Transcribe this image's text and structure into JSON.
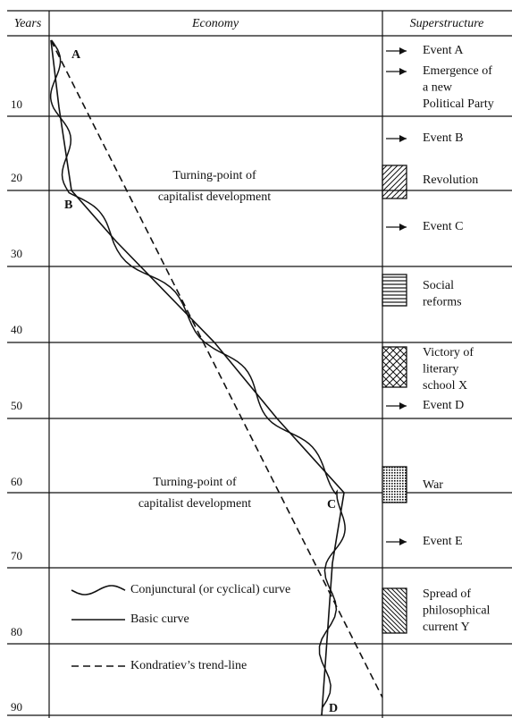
{
  "header": {
    "years": "Years",
    "economy": "Economy",
    "superstructure": "Superstructure"
  },
  "years": [
    "10",
    "20",
    "30",
    "40",
    "50",
    "60",
    "70",
    "80",
    "90"
  ],
  "points": [
    "A",
    "B",
    "C",
    "D"
  ],
  "annotations": [
    {
      "lines": [
        "Turning-point of",
        "capitalist development"
      ]
    },
    {
      "lines": [
        "Turning-point of",
        "capitalist development"
      ]
    }
  ],
  "superstructure": [
    {
      "lines": [
        "Event A"
      ]
    },
    {
      "lines": [
        "Emergence of",
        "a new",
        "Political Party"
      ]
    },
    {
      "lines": [
        "Event B"
      ]
    },
    {
      "lines": [
        "Revolution"
      ]
    },
    {
      "lines": [
        "Event C"
      ]
    },
    {
      "lines": [
        "Social",
        "reforms"
      ]
    },
    {
      "lines": [
        "Victory of",
        "literary",
        "school X"
      ]
    },
    {
      "lines": [
        "Event D"
      ]
    },
    {
      "lines": [
        "War"
      ]
    },
    {
      "lines": [
        "Event E"
      ]
    },
    {
      "lines": [
        "Spread of",
        "philosophical",
        "current Y"
      ]
    }
  ],
  "legend": [
    "Conjunctural (or cyclical) curve",
    "Basic curve",
    "Kondratiev’s trend-line"
  ]
}
